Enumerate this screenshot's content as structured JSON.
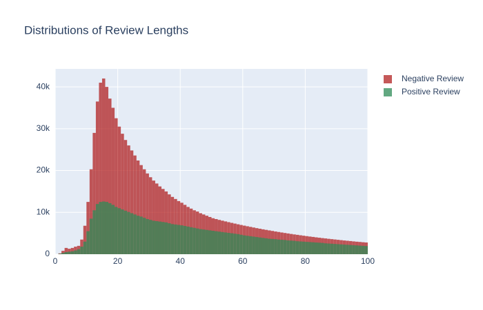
{
  "chart_data": {
    "type": "histogram",
    "title": "Distributions of Review Lengths",
    "bins": [
      0,
      1,
      2,
      3,
      4,
      5,
      6,
      7,
      8,
      9,
      10,
      11,
      12,
      13,
      14,
      15,
      16,
      17,
      18,
      19,
      20,
      21,
      22,
      23,
      24,
      25,
      26,
      27,
      28,
      29,
      30,
      31,
      32,
      33,
      34,
      35,
      36,
      37,
      38,
      39,
      40,
      41,
      42,
      43,
      44,
      45,
      46,
      47,
      48,
      49,
      50,
      51,
      52,
      53,
      54,
      55,
      56,
      57,
      58,
      59,
      60,
      61,
      62,
      63,
      64,
      65,
      66,
      67,
      68,
      69,
      70,
      71,
      72,
      73,
      74,
      75,
      76,
      77,
      78,
      79,
      80,
      81,
      82,
      83,
      84,
      85,
      86,
      87,
      88,
      89,
      90,
      91,
      92,
      93,
      94,
      95,
      96,
      97,
      98,
      99,
      100
    ],
    "series": [
      {
        "name": "Negative Review",
        "color": "#b22222",
        "values": [
          0,
          200,
          800,
          1500,
          1300,
          1500,
          1800,
          2000,
          3500,
          6800,
          12500,
          20300,
          29000,
          36500,
          41000,
          42000,
          40000,
          37200,
          35000,
          32500,
          30500,
          28800,
          27300,
          26000,
          24800,
          23600,
          22400,
          21300,
          20300,
          19300,
          18400,
          17600,
          16900,
          16200,
          15600,
          15000,
          14300,
          13700,
          13200,
          12700,
          12300,
          11800,
          11300,
          10900,
          10500,
          10200,
          9800,
          9500,
          9200,
          8900,
          8600,
          8400,
          8200,
          8020,
          7840,
          7660,
          7490,
          7320,
          7150,
          6990,
          6830,
          6680,
          6530,
          6380,
          6230,
          6090,
          5950,
          5820,
          5690,
          5560,
          5430,
          5310,
          5190,
          5070,
          4960,
          4840,
          4730,
          4630,
          4520,
          4420,
          4320,
          4220,
          4130,
          4030,
          3940,
          3850,
          3770,
          3680,
          3600,
          3520,
          3440,
          3360,
          3280,
          3210,
          3140,
          3060,
          2990,
          2930,
          2860,
          2800
        ]
      },
      {
        "name": "Positive Review",
        "color": "#2e8b57",
        "values": [
          0,
          100,
          300,
          500,
          600,
          700,
          900,
          1200,
          1800,
          3000,
          5500,
          8500,
          10500,
          12000,
          12500,
          12600,
          12500,
          12200,
          11800,
          11300,
          11000,
          10700,
          10400,
          10100,
          9800,
          9500,
          9200,
          9000,
          8700,
          8400,
          8200,
          8000,
          7900,
          7800,
          7700,
          7600,
          7400,
          7200,
          7100,
          7000,
          6900,
          6750,
          6600,
          6450,
          6300,
          6150,
          6000,
          5900,
          5800,
          5700,
          5600,
          5500,
          5400,
          5300,
          5200,
          5100,
          5000,
          4900,
          4800,
          4650,
          4500,
          4400,
          4300,
          4200,
          4100,
          4000,
          3900,
          3800,
          3700,
          3650,
          3600,
          3500,
          3450,
          3400,
          3300,
          3250,
          3200,
          3100,
          3050,
          3000,
          2950,
          2900,
          2850,
          2800,
          2750,
          2700,
          2600,
          2550,
          2500,
          2450,
          2400,
          2350,
          2300,
          2250,
          2200,
          2150,
          2100,
          2050,
          2000,
          1950
        ]
      }
    ],
    "opacity": 0.75,
    "xlim": [
      0,
      100
    ],
    "xticks": [
      0,
      20,
      40,
      60,
      80,
      100
    ],
    "ylim": [
      0,
      44300
    ],
    "yticks": [
      0,
      {
        "value": 10000,
        "label": "10k"
      },
      {
        "value": 20000,
        "label": "20k"
      },
      {
        "value": 30000,
        "label": "30k"
      },
      {
        "value": 40000,
        "label": "40k"
      }
    ],
    "grid": true,
    "legend": "top-right"
  }
}
